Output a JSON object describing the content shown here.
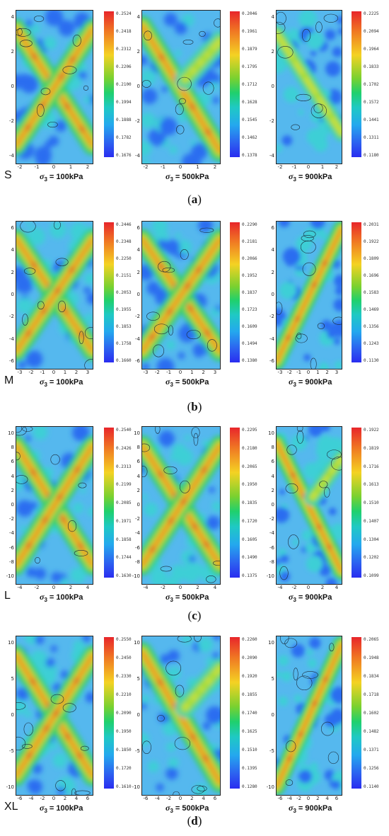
{
  "rows": [
    {
      "size_label": "S",
      "caption_letter": "a",
      "panels": [
        {
          "sigma_value": "= 100kPa",
          "cbar_labels": [
            "0.2524",
            "0.2418",
            "0.2312",
            "0.2206",
            "0.2100",
            "0.1994",
            "0.1888",
            "0.1782",
            "0.1676"
          ],
          "pattern": "X"
        },
        {
          "sigma_value": "= 500kPa",
          "cbar_labels": [
            "0.2046",
            "0.1961",
            "0.1879",
            "0.1795",
            "0.1712",
            "0.1628",
            "0.1545",
            "0.1462",
            "0.1378"
          ],
          "pattern": "backslash"
        },
        {
          "sigma_value": "= 900kPa",
          "cbar_labels": [
            "0.2225",
            "0.2094",
            "0.1964",
            "0.1833",
            "0.1702",
            "0.1572",
            "0.1441",
            "0.1311",
            "0.1180"
          ],
          "pattern": "backslash-weak"
        }
      ],
      "y_ticks": [
        "4",
        "2",
        "0",
        "-2",
        "-4"
      ],
      "x_ticks": [
        "-2",
        "-1",
        "0",
        "1",
        "2"
      ]
    },
    {
      "size_label": "M",
      "caption_letter": "b",
      "panels": [
        {
          "sigma_value": "= 100kPa",
          "cbar_labels": [
            "0.2446",
            "0.2348",
            "0.2250",
            "0.2151",
            "0.2053",
            "0.1955",
            "0.1853",
            "0.1758",
            "0.1660"
          ],
          "pattern": "X"
        },
        {
          "sigma_value": "= 500kPa",
          "cbar_labels": [
            "0.2290",
            "0.2181",
            "0.2066",
            "0.1952",
            "0.1837",
            "0.1723",
            "0.1609",
            "0.1494",
            "0.1380"
          ],
          "pattern": "X"
        },
        {
          "sigma_value": "= 900kPa",
          "cbar_labels": [
            "0.2031",
            "0.1922",
            "0.1809",
            "0.1696",
            "0.1583",
            "0.1469",
            "0.1356",
            "0.1243",
            "0.1130"
          ],
          "pattern": "slash"
        }
      ],
      "y_ticks": [
        "6",
        "4",
        "2",
        "0",
        "-2",
        "-4",
        "-6"
      ],
      "x_ticks": [
        "-3",
        "-2",
        "-1",
        "0",
        "1",
        "2",
        "3"
      ]
    },
    {
      "size_label": "L",
      "caption_letter": "c",
      "panels": [
        {
          "sigma_value": "= 100kPa",
          "cbar_labels": [
            "0.2540",
            "0.2426",
            "0.2313",
            "0.2199",
            "0.2085",
            "0.1971",
            "0.1858",
            "0.1744",
            "0.1630"
          ],
          "pattern": "X"
        },
        {
          "sigma_value": "= 500kPa",
          "cbar_labels": [
            "0.2295",
            "0.2180",
            "0.2065",
            "0.1950",
            "0.1835",
            "0.1720",
            "0.1605",
            "0.1490",
            "0.1375"
          ],
          "pattern": "X"
        },
        {
          "sigma_value": "= 900kPa",
          "cbar_labels": [
            "0.1922",
            "0.1819",
            "0.1716",
            "0.1613",
            "0.1510",
            "0.1407",
            "0.1304",
            "0.1202",
            "0.1099"
          ],
          "pattern": "backslash"
        }
      ],
      "y_ticks": [
        "10",
        "8",
        "6",
        "4",
        "2",
        "0",
        "-2",
        "-4",
        "-6",
        "-8",
        "-10"
      ],
      "x_ticks": [
        "-4",
        "-2",
        "0",
        "2",
        "4"
      ]
    },
    {
      "size_label": "XL",
      "caption_letter": "d",
      "panels": [
        {
          "sigma_value": "= 100kPa",
          "cbar_labels": [
            "0.2550",
            "0.2450",
            "0.2330",
            "0.2210",
            "0.2090",
            "0.1950",
            "0.1850",
            "0.1720",
            "0.1610"
          ],
          "pattern": "X"
        },
        {
          "sigma_value": "= 500kPa",
          "cbar_labels": [
            "0.2260",
            "0.2090",
            "0.1920",
            "0.1855",
            "0.1740",
            "0.1625",
            "0.1510",
            "0.1395",
            "0.1280"
          ],
          "pattern": "backslash"
        },
        {
          "sigma_value": "= 900kPa",
          "cbar_labels": [
            "0.2065",
            "0.1948",
            "0.1834",
            "0.1718",
            "0.1602",
            "0.1482",
            "0.1371",
            "0.1256",
            "0.1140"
          ],
          "pattern": "slash"
        }
      ],
      "y_ticks": [
        "10",
        "5",
        "0",
        "-5",
        "-10"
      ],
      "x_ticks": [
        "-6",
        "-4",
        "-2",
        "0",
        "2",
        "4",
        "6"
      ]
    }
  ],
  "sigma_symbol": "σ",
  "sigma_subscript": "3",
  "colors": {
    "high": "#e8262b",
    "mid_high": "#f4d223",
    "mid": "#1fd06e",
    "low_mid": "#55b8ee",
    "low": "#2a2df0"
  }
}
